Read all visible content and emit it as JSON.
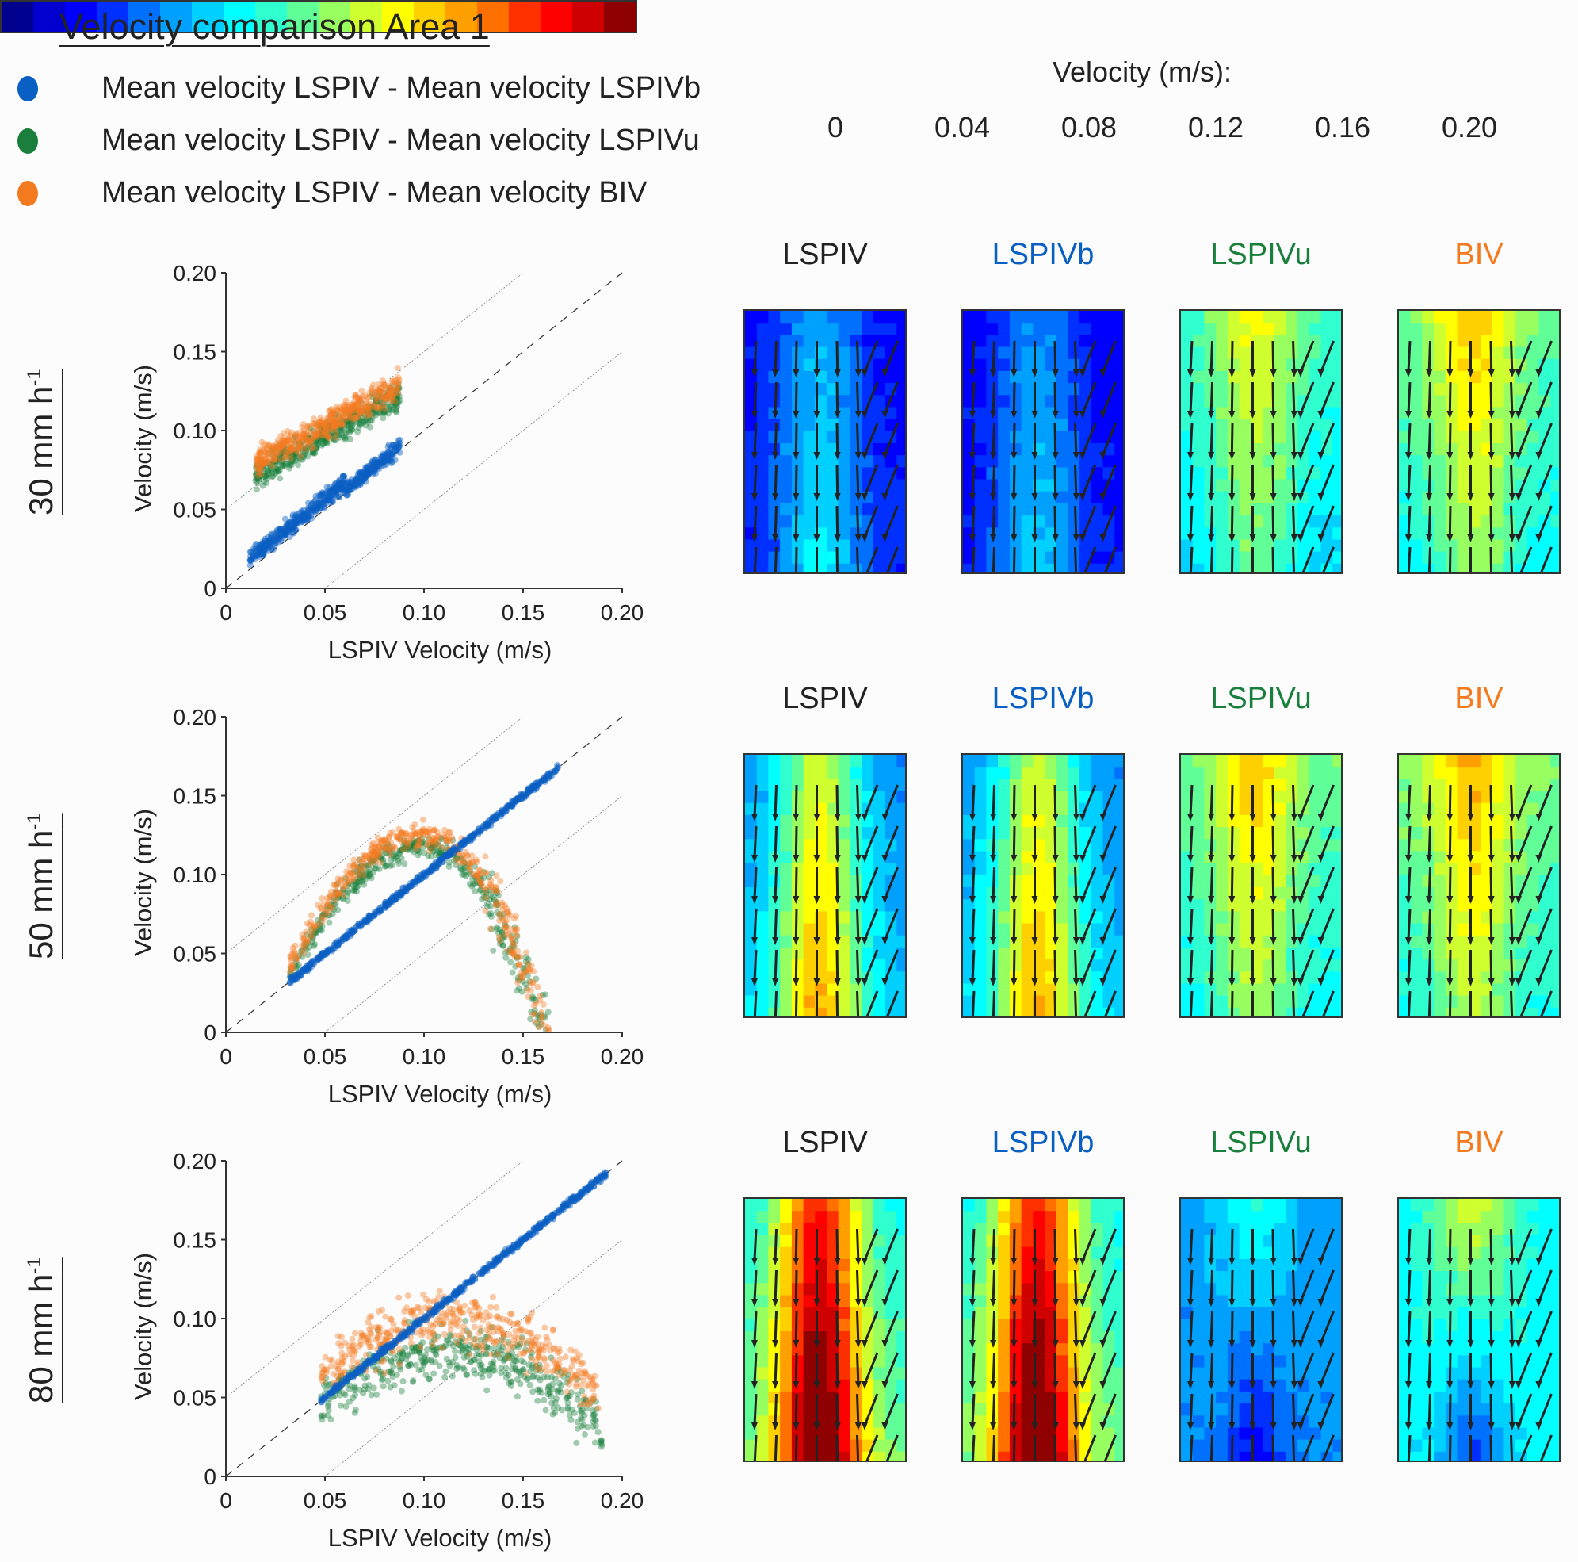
{
  "title": "Velocity comparison Area 1",
  "legend": [
    {
      "label": "Mean velocity LSPIV - Mean velocity LSPIVb",
      "color": "#0a5fc4"
    },
    {
      "label": "Mean velocity LSPIV - Mean velocity LSPIVu",
      "color": "#1a7f3c"
    },
    {
      "label": "Mean velocity LSPIV - Mean velocity BIV",
      "color": "#f47a20"
    }
  ],
  "colorbar": {
    "title": "Velocity (m/s):",
    "ticks": [
      "0",
      "0.04",
      "0.08",
      "0.12",
      "0.16",
      "0.20"
    ],
    "range": [
      0,
      0.2
    ],
    "colors": [
      "#00008f",
      "#0000cf",
      "#0000ff",
      "#0030ff",
      "#0070ff",
      "#00a0ff",
      "#00d0ff",
      "#00ffff",
      "#30ffd0",
      "#60ff98",
      "#98ff60",
      "#d0ff30",
      "#ffff00",
      "#ffd000",
      "#ffa000",
      "#ff7000",
      "#ff3000",
      "#ff0000",
      "#cf0000",
      "#8f0000"
    ]
  },
  "method_titles": [
    {
      "label": "LSPIV",
      "color": "#222222"
    },
    {
      "label": "LSPIVb",
      "color": "#0a5fc4"
    },
    {
      "label": "LSPIVu",
      "color": "#1a7f3c"
    },
    {
      "label": "BIV",
      "color": "#f47a20"
    }
  ],
  "rows": [
    {
      "rate": "30 mm h",
      "sup": "-1",
      "heatmap_levels": [
        0.05,
        0.045,
        0.1,
        0.11
      ]
    },
    {
      "rate": "50 mm h",
      "sup": "-1",
      "heatmap_levels": [
        0.1,
        0.1,
        0.11,
        0.115
      ]
    },
    {
      "rate": "80 mm h",
      "sup": "-1",
      "heatmap_levels": [
        0.15,
        0.15,
        0.055,
        0.08
      ]
    }
  ],
  "chart_data": [
    {
      "type": "scatter",
      "title": "30 mm h-1",
      "xlabel": "LSPIV Velocity (m/s)",
      "ylabel": "Velocity (m/s)",
      "xlim": [
        0,
        0.2
      ],
      "ylim": [
        0,
        0.2
      ],
      "xticks": [
        "0",
        "0.05",
        "0.10",
        "0.15",
        "0.20"
      ],
      "yticks": [
        "0",
        "0.05",
        "0.10",
        "0.15",
        "0.20"
      ],
      "reference_lines": [
        {
          "style": "dashed",
          "offset": 0
        },
        {
          "style": "dotted",
          "offset": 0.05
        },
        {
          "style": "dotted",
          "offset": -0.05
        }
      ],
      "series": [
        {
          "name": "LSPIVb",
          "color": "#0a5fc4",
          "x_range": [
            0.01,
            0.088
          ],
          "trend": "y≈x+0.005",
          "spread": 0.005
        },
        {
          "name": "LSPIVu",
          "color": "#1a7f3c",
          "x_range": [
            0.015,
            0.088
          ],
          "trend": "rising 0.075→0.12",
          "spread": 0.015
        },
        {
          "name": "BIV",
          "color": "#f47a20",
          "x_range": [
            0.015,
            0.088
          ],
          "trend": "rising 0.08→0.13",
          "spread": 0.012
        }
      ]
    },
    {
      "type": "scatter",
      "title": "50 mm h-1",
      "xlabel": "LSPIV Velocity (m/s)",
      "ylabel": "Velocity (m/s)",
      "xlim": [
        0,
        0.2
      ],
      "ylim": [
        0,
        0.2
      ],
      "xticks": [
        "0",
        "0.05",
        "0.10",
        "0.15",
        "0.20"
      ],
      "yticks": [
        "0",
        "0.05",
        "0.10",
        "0.15",
        "0.20"
      ],
      "reference_lines": [
        {
          "style": "dashed",
          "offset": 0
        },
        {
          "style": "dotted",
          "offset": 0.05
        },
        {
          "style": "dotted",
          "offset": -0.05
        }
      ],
      "series": [
        {
          "name": "LSPIVb",
          "color": "#0a5fc4",
          "x_range": [
            0.03,
            0.168
          ],
          "trend": "y≈x",
          "spread": 0.003
        },
        {
          "name": "LSPIVu",
          "color": "#1a7f3c",
          "x_range": [
            0.03,
            0.168
          ],
          "trend": "arch peak 0.12 at x≈0.10",
          "spread": 0.02
        },
        {
          "name": "BIV",
          "color": "#f47a20",
          "x_range": [
            0.03,
            0.168
          ],
          "trend": "arch peak 0.125 at x≈0.11",
          "spread": 0.015
        }
      ]
    },
    {
      "type": "scatter",
      "title": "80 mm h-1",
      "xlabel": "LSPIV Velocity (m/s)",
      "ylabel": "Velocity (m/s)",
      "xlim": [
        0,
        0.2
      ],
      "ylim": [
        0,
        0.2
      ],
      "xticks": [
        "0",
        "0.05",
        "0.10",
        "0.15",
        "0.20"
      ],
      "yticks": [
        "0",
        "0.05",
        "0.10",
        "0.15",
        "0.20"
      ],
      "reference_lines": [
        {
          "style": "dashed",
          "offset": 0
        },
        {
          "style": "dotted",
          "offset": 0.05
        },
        {
          "style": "dotted",
          "offset": -0.05
        }
      ],
      "series": [
        {
          "name": "LSPIVb",
          "color": "#0a5fc4",
          "x_range": [
            0.048,
            0.192
          ],
          "trend": "y≈x",
          "spread": 0.003
        },
        {
          "name": "LSPIVu",
          "color": "#1a7f3c",
          "x_range": [
            0.048,
            0.19
          ],
          "trend": "arch peak 0.085 at x≈0.11",
          "spread": 0.025
        },
        {
          "name": "BIV",
          "color": "#f47a20",
          "x_range": [
            0.048,
            0.19
          ],
          "trend": "arch peak 0.105 at x≈0.12",
          "spread": 0.022
        }
      ]
    }
  ]
}
